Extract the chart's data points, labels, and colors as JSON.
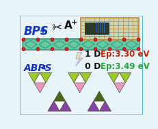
{
  "bg_color": "#e8f4f8",
  "border_color": "#4ab8cc",
  "title_bps4": "BPS",
  "title_bps4_sub": "4",
  "title_abps4": "ABPS",
  "title_abps4_sub": "4",
  "label_1d": "1 D",
  "label_0d": "0 D",
  "ep_1d": "Ep:3.30 eV",
  "ep_0d": "Ep:3.49 eV",
  "chain_color": "#50c8a0",
  "chain_outline": "#888888",
  "node_color": "#dd2222",
  "node_outline": "#990000",
  "tri_green_lt": "#99cc22",
  "tri_pink": "#e899bb",
  "tri_white": "#ffffff",
  "tri_dark_green": "#4a6618",
  "tri_purple": "#8844aa",
  "text_blue": "#1133cc",
  "text_red": "#cc2200",
  "text_green": "#22aa33",
  "text_black": "#111111",
  "photo_bg": "#c8d4b8",
  "photo_grid": "#cc8822",
  "photo_obj": "#2a3a2a"
}
